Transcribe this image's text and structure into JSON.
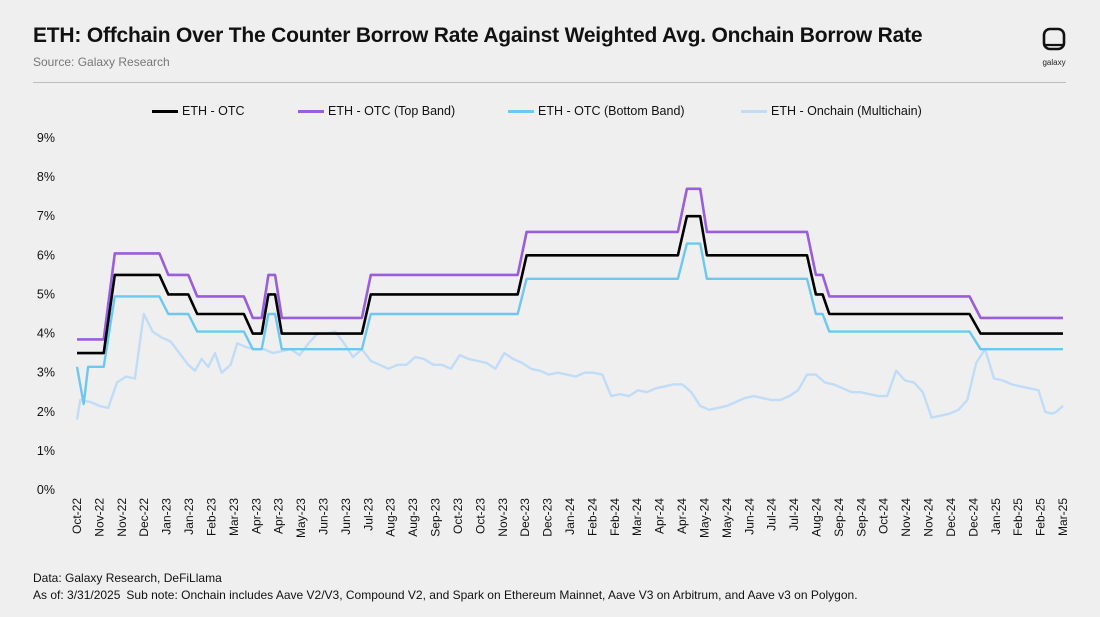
{
  "header": {
    "title": "ETH: Offchain Over The Counter Borrow Rate Against Weighted Avg. Onchain Borrow Rate",
    "source": "Source: Galaxy Research",
    "logo_text": "galaxy"
  },
  "footer": {
    "data_line": "Data: Galaxy Research, DeFiLlama",
    "as_of": "As of: 3/31/2025",
    "sub_note": "Sub note: Onchain includes Aave V2/V3, Compound V2, and Spark on Ethereum Mainnet, Aave V3 on Arbitrum, and Aave v3 on Polygon."
  },
  "chart_data": {
    "type": "line",
    "title": "ETH: Offchain Over The Counter Borrow Rate Against Weighted Avg. Onchain Borrow Rate",
    "xlabel": "",
    "ylabel": "",
    "ylim": [
      0,
      9
    ],
    "yticks": [
      "0%",
      "1%",
      "2%",
      "3%",
      "4%",
      "5%",
      "6%",
      "7%",
      "8%",
      "9%"
    ],
    "grid": false,
    "legend_position": "top",
    "x_tick_labels": [
      "Oct-22",
      "Nov-22",
      "Nov-22",
      "Dec-22",
      "Jan-23",
      "Jan-23",
      "Feb-23",
      "Mar-23",
      "Apr-23",
      "Apr-23",
      "May-23",
      "Jun-23",
      "Jun-23",
      "Jul-23",
      "Aug-23",
      "Aug-23",
      "Sep-23",
      "Oct-23",
      "Oct-23",
      "Nov-23",
      "Dec-23",
      "Dec-23",
      "Jan-24",
      "Feb-24",
      "Feb-24",
      "Mar-24",
      "Apr-24",
      "Apr-24",
      "May-24",
      "May-24",
      "Jun-24",
      "Jul-24",
      "Jul-24",
      "Aug-24",
      "Sep-24",
      "Sep-24",
      "Oct-24",
      "Nov-24",
      "Nov-24",
      "Dec-24",
      "Dec-24",
      "Jan-25",
      "Feb-25",
      "Feb-25",
      "Mar-25"
    ],
    "x_range": [
      0,
      44.3
    ],
    "series": [
      {
        "name": "ETH - OTC",
        "color": "#000000",
        "points": [
          [
            0,
            3.5
          ],
          [
            1.2,
            3.5
          ],
          [
            1.7,
            5.5
          ],
          [
            3.7,
            5.5
          ],
          [
            4.1,
            5.0
          ],
          [
            5.0,
            5.0
          ],
          [
            5.4,
            4.5
          ],
          [
            7.5,
            4.5
          ],
          [
            7.9,
            4.0
          ],
          [
            8.3,
            4.0
          ],
          [
            8.6,
            5.0
          ],
          [
            8.9,
            5.0
          ],
          [
            9.2,
            4.0
          ],
          [
            12.8,
            4.0
          ],
          [
            13.2,
            5.0
          ],
          [
            19.8,
            5.0
          ],
          [
            20.2,
            6.0
          ],
          [
            27.0,
            6.0
          ],
          [
            27.4,
            7.0
          ],
          [
            28.0,
            7.0
          ],
          [
            28.3,
            6.0
          ],
          [
            32.8,
            6.0
          ],
          [
            33.2,
            5.0
          ],
          [
            33.5,
            5.0
          ],
          [
            33.8,
            4.5
          ],
          [
            40.1,
            4.5
          ],
          [
            40.6,
            4.0
          ],
          [
            44.3,
            4.0
          ]
        ]
      },
      {
        "name": "ETH - OTC (Top Band)",
        "color": "#9a5de0",
        "points": [
          [
            0,
            3.85
          ],
          [
            1.2,
            3.85
          ],
          [
            1.7,
            6.05
          ],
          [
            3.7,
            6.05
          ],
          [
            4.1,
            5.5
          ],
          [
            5.0,
            5.5
          ],
          [
            5.4,
            4.95
          ],
          [
            7.5,
            4.95
          ],
          [
            7.9,
            4.4
          ],
          [
            8.3,
            4.4
          ],
          [
            8.6,
            5.5
          ],
          [
            8.9,
            5.5
          ],
          [
            9.2,
            4.4
          ],
          [
            12.8,
            4.4
          ],
          [
            13.2,
            5.5
          ],
          [
            19.8,
            5.5
          ],
          [
            20.2,
            6.6
          ],
          [
            27.0,
            6.6
          ],
          [
            27.4,
            7.7
          ],
          [
            28.0,
            7.7
          ],
          [
            28.3,
            6.6
          ],
          [
            32.8,
            6.6
          ],
          [
            33.2,
            5.5
          ],
          [
            33.5,
            5.5
          ],
          [
            33.8,
            4.95
          ],
          [
            40.1,
            4.95
          ],
          [
            40.6,
            4.4
          ],
          [
            44.3,
            4.4
          ]
        ]
      },
      {
        "name": "ETH - OTC (Bottom Band)",
        "color": "#6cc8f2",
        "points": [
          [
            0,
            3.15
          ],
          [
            0.3,
            2.2
          ],
          [
            0.5,
            3.15
          ],
          [
            1.2,
            3.15
          ],
          [
            1.7,
            4.95
          ],
          [
            3.7,
            4.95
          ],
          [
            4.1,
            4.5
          ],
          [
            5.0,
            4.5
          ],
          [
            5.4,
            4.05
          ],
          [
            7.5,
            4.05
          ],
          [
            7.9,
            3.6
          ],
          [
            8.3,
            3.6
          ],
          [
            8.6,
            4.5
          ],
          [
            8.9,
            4.5
          ],
          [
            9.2,
            3.6
          ],
          [
            12.8,
            3.6
          ],
          [
            13.2,
            4.5
          ],
          [
            19.8,
            4.5
          ],
          [
            20.2,
            5.4
          ],
          [
            27.0,
            5.4
          ],
          [
            27.4,
            6.3
          ],
          [
            28.0,
            6.3
          ],
          [
            28.3,
            5.4
          ],
          [
            32.8,
            5.4
          ],
          [
            33.2,
            4.5
          ],
          [
            33.5,
            4.5
          ],
          [
            33.8,
            4.05
          ],
          [
            40.1,
            4.05
          ],
          [
            40.6,
            3.6
          ],
          [
            44.3,
            3.6
          ]
        ]
      },
      {
        "name": "ETH - Onchain (Multichain)",
        "color": "#c0dcf7",
        "points": [
          [
            0,
            1.8
          ],
          [
            0.15,
            2.3
          ],
          [
            0.6,
            2.25
          ],
          [
            1.0,
            2.15
          ],
          [
            1.4,
            2.1
          ],
          [
            1.8,
            2.75
          ],
          [
            2.2,
            2.9
          ],
          [
            2.6,
            2.85
          ],
          [
            3.0,
            4.5
          ],
          [
            3.4,
            4.05
          ],
          [
            3.8,
            3.9
          ],
          [
            4.2,
            3.8
          ],
          [
            4.6,
            3.5
          ],
          [
            5.0,
            3.2
          ],
          [
            5.3,
            3.05
          ],
          [
            5.6,
            3.35
          ],
          [
            5.9,
            3.15
          ],
          [
            6.2,
            3.5
          ],
          [
            6.5,
            3.0
          ],
          [
            6.9,
            3.2
          ],
          [
            7.2,
            3.75
          ],
          [
            7.6,
            3.65
          ],
          [
            8.0,
            3.6
          ],
          [
            8.4,
            3.6
          ],
          [
            8.8,
            3.5
          ],
          [
            9.2,
            3.55
          ],
          [
            9.6,
            3.6
          ],
          [
            10.0,
            3.45
          ],
          [
            10.4,
            3.75
          ],
          [
            10.8,
            4.0
          ],
          [
            11.2,
            4.0
          ],
          [
            11.6,
            4.05
          ],
          [
            12.0,
            3.75
          ],
          [
            12.4,
            3.4
          ],
          [
            12.8,
            3.6
          ],
          [
            13.2,
            3.3
          ],
          [
            13.6,
            3.2
          ],
          [
            14.0,
            3.1
          ],
          [
            14.4,
            3.2
          ],
          [
            14.8,
            3.2
          ],
          [
            15.2,
            3.4
          ],
          [
            15.6,
            3.35
          ],
          [
            16.0,
            3.2
          ],
          [
            16.4,
            3.2
          ],
          [
            16.8,
            3.1
          ],
          [
            17.2,
            3.45
          ],
          [
            17.6,
            3.35
          ],
          [
            18.0,
            3.3
          ],
          [
            18.4,
            3.25
          ],
          [
            18.8,
            3.1
          ],
          [
            19.2,
            3.5
          ],
          [
            19.6,
            3.35
          ],
          [
            20.0,
            3.25
          ],
          [
            20.4,
            3.1
          ],
          [
            20.8,
            3.05
          ],
          [
            21.2,
            2.95
          ],
          [
            21.6,
            3.0
          ],
          [
            22.0,
            2.95
          ],
          [
            22.4,
            2.9
          ],
          [
            22.8,
            3.0
          ],
          [
            23.2,
            3.0
          ],
          [
            23.6,
            2.95
          ],
          [
            24.0,
            2.4
          ],
          [
            24.4,
            2.45
          ],
          [
            24.8,
            2.4
          ],
          [
            25.2,
            2.55
          ],
          [
            25.6,
            2.5
          ],
          [
            26.0,
            2.6
          ],
          [
            26.4,
            2.65
          ],
          [
            26.8,
            2.7
          ],
          [
            27.2,
            2.7
          ],
          [
            27.6,
            2.5
          ],
          [
            28.0,
            2.15
          ],
          [
            28.4,
            2.05
          ],
          [
            28.8,
            2.1
          ],
          [
            29.2,
            2.15
          ],
          [
            29.6,
            2.25
          ],
          [
            30.0,
            2.35
          ],
          [
            30.4,
            2.4
          ],
          [
            30.8,
            2.35
          ],
          [
            31.2,
            2.3
          ],
          [
            31.6,
            2.3
          ],
          [
            32.0,
            2.4
          ],
          [
            32.4,
            2.55
          ],
          [
            32.8,
            2.95
          ],
          [
            33.2,
            2.95
          ],
          [
            33.6,
            2.75
          ],
          [
            34.0,
            2.7
          ],
          [
            34.4,
            2.6
          ],
          [
            34.8,
            2.5
          ],
          [
            35.2,
            2.5
          ],
          [
            35.6,
            2.45
          ],
          [
            36.0,
            2.4
          ],
          [
            36.4,
            2.4
          ],
          [
            36.8,
            3.05
          ],
          [
            37.2,
            2.8
          ],
          [
            37.6,
            2.75
          ],
          [
            38.0,
            2.5
          ],
          [
            38.4,
            1.85
          ],
          [
            38.8,
            1.9
          ],
          [
            39.2,
            1.95
          ],
          [
            39.6,
            2.05
          ],
          [
            40.0,
            2.3
          ],
          [
            40.4,
            3.25
          ],
          [
            40.8,
            3.6
          ],
          [
            41.2,
            2.85
          ],
          [
            41.6,
            2.8
          ],
          [
            42.0,
            2.7
          ],
          [
            42.4,
            2.65
          ],
          [
            42.8,
            2.6
          ],
          [
            43.2,
            2.55
          ],
          [
            43.5,
            2.0
          ],
          [
            43.8,
            1.95
          ],
          [
            44.0,
            2.0
          ],
          [
            44.3,
            2.15
          ]
        ]
      }
    ]
  }
}
